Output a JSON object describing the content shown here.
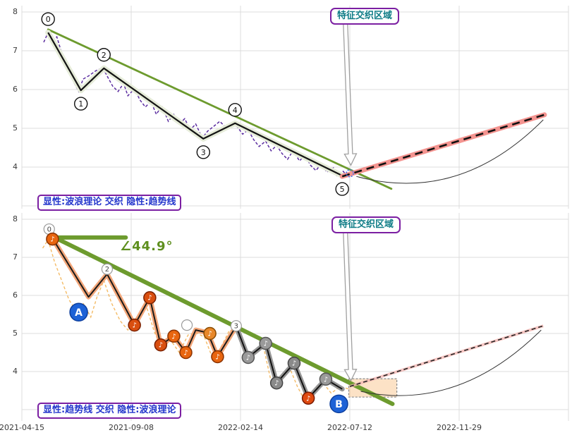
{
  "colors": {
    "background": "#ffffff",
    "grid": "#dcdcdc",
    "tick_text": "#3a3a3a",
    "trend_green": "#6d9b2e",
    "wave_black": "#141414",
    "wave_halo": "#e6ecd9",
    "price_purple": "#5b2da0",
    "price_orange": "#f0a433",
    "forecast_pink": "#f49490",
    "forecast_dash": "#111111",
    "orange_wave_halo": "#f2a172",
    "gray_wave_halo": "#909090",
    "badge_blue": "#1e62d6",
    "zone_border": "#7b1fa2",
    "zone_text": "#0e7c86",
    "caption_text": "#2235cc",
    "caption_border": "#7b1fa2",
    "angle_green": "#5e8f1e",
    "arrow_stroke": "#999999",
    "arc_stroke": "#333333",
    "convergence_blue": "#3b6bf5"
  },
  "x_axis": {
    "ticks": [
      "2021-04-15",
      "2021-09-08",
      "2022-02-14",
      "2022-07-12",
      "2022-11-29"
    ],
    "unit_note": "x values below are in tick-index units: 0=2021-04-15, 1=2021-09-08, 2=2022-02-14, 3=2022-07-12, 4=2022-11-29"
  },
  "chart_data": [
    {
      "type": "line",
      "panel": "top",
      "zone_label": "特征交织区域",
      "caption": "显性:波浪理论 交织 隐性:趋势线",
      "y_ticks": [
        8,
        7,
        6,
        5,
        4
      ],
      "ylim": [
        2.93,
        8.16
      ],
      "xlim_t": [
        0,
        5
      ],
      "grid": true,
      "series": [
        {
          "name": "price",
          "style": "dashed",
          "color_key": "price_purple",
          "points": [
            [
              0.2,
              7.22
            ],
            [
              0.24,
              7.47
            ],
            [
              0.28,
              7.29
            ],
            [
              0.32,
              7.36
            ],
            [
              0.37,
              6.89
            ],
            [
              0.42,
              6.53
            ],
            [
              0.48,
              6.16
            ],
            [
              0.52,
              5.95
            ],
            [
              0.56,
              6.27
            ],
            [
              0.61,
              6.35
            ],
            [
              0.68,
              6.49
            ],
            [
              0.74,
              6.56
            ],
            [
              0.78,
              6.35
            ],
            [
              0.83,
              6.09
            ],
            [
              0.88,
              5.95
            ],
            [
              0.93,
              6.16
            ],
            [
              0.97,
              5.84
            ],
            [
              1.03,
              6.02
            ],
            [
              1.08,
              5.73
            ],
            [
              1.13,
              5.55
            ],
            [
              1.18,
              5.69
            ],
            [
              1.23,
              5.36
            ],
            [
              1.28,
              5.58
            ],
            [
              1.34,
              5.18
            ],
            [
              1.39,
              5.36
            ],
            [
              1.44,
              5.11
            ],
            [
              1.49,
              5.25
            ],
            [
              1.54,
              4.96
            ],
            [
              1.59,
              5.11
            ],
            [
              1.65,
              4.75
            ],
            [
              1.7,
              4.93
            ],
            [
              1.75,
              5.04
            ],
            [
              1.81,
              5.18
            ],
            [
              1.86,
              5.04
            ],
            [
              1.92,
              5.11
            ],
            [
              1.97,
              5.04
            ],
            [
              2.02,
              4.85
            ],
            [
              2.07,
              4.96
            ],
            [
              2.12,
              4.71
            ],
            [
              2.17,
              4.53
            ],
            [
              2.23,
              4.67
            ],
            [
              2.28,
              4.42
            ],
            [
              2.33,
              4.56
            ],
            [
              2.38,
              4.35
            ],
            [
              2.43,
              4.2
            ],
            [
              2.48,
              4.42
            ],
            [
              2.54,
              4.16
            ],
            [
              2.59,
              4.31
            ],
            [
              2.64,
              4.05
            ],
            [
              2.69,
              3.91
            ],
            [
              2.74,
              4.09
            ],
            [
              2.79,
              3.87
            ],
            [
              2.85,
              3.98
            ],
            [
              2.88,
              3.78
            ],
            [
              2.94,
              3.89
            ],
            [
              2.97,
              3.78
            ],
            [
              3.03,
              3.85
            ]
          ]
        },
        {
          "name": "elliott_wave",
          "style": "zigzag",
          "color_key": "wave_black",
          "points": [
            [
              0.24,
              7.47
            ],
            [
              0.54,
              5.98
            ],
            [
              0.75,
              6.55
            ],
            [
              1.66,
              4.73
            ],
            [
              1.95,
              5.13
            ],
            [
              2.93,
              3.78
            ]
          ],
          "labels": [
            "0",
            "1",
            "2",
            "3",
            "4",
            "5"
          ],
          "label_side": [
            "above",
            "below",
            "above",
            "below",
            "above",
            "below"
          ],
          "dates_est": [
            "2021-05-20",
            "2021-07-04",
            "2021-08-05",
            "2021-12-24",
            "2022-02-06",
            "2022-07-01"
          ]
        },
        {
          "name": "trend_line",
          "style": "solid",
          "color_key": "trend_green",
          "points": [
            [
              0.24,
              7.55
            ],
            [
              3.38,
              3.44
            ]
          ]
        },
        {
          "name": "forecast",
          "style": "pink-halo-black-dashed",
          "points": [
            [
              2.93,
              3.76
            ],
            [
              4.78,
              5.35
            ]
          ]
        }
      ],
      "arrow": {
        "tail": [
          2.96,
          7.69
        ],
        "tip": [
          3.01,
          4.05
        ]
      },
      "arc": {
        "from": [
          4.77,
          5.22
        ],
        "ctrl": [
          4.0,
          3.04
        ],
        "to": [
          3.06,
          3.76
        ]
      },
      "convergence_marker": [
        3.0,
        3.84
      ]
    },
    {
      "type": "line",
      "panel": "bottom",
      "zone_label": "特征交织区域",
      "caption": "显性:趋势线 交织 隐性:波浪理论",
      "angle_label": "∠44.9°",
      "y_ticks": [
        8,
        7,
        6,
        5,
        4
      ],
      "ylim": [
        2.7,
        8.17
      ],
      "xlim_t": [
        0,
        5
      ],
      "grid": true,
      "series": [
        {
          "name": "price",
          "style": "dashed",
          "color_key": "price_orange",
          "points": [
            [
              0.19,
              7.24
            ],
            [
              0.24,
              7.46
            ],
            [
              0.3,
              6.87
            ],
            [
              0.37,
              6.35
            ],
            [
              0.43,
              5.89
            ],
            [
              0.5,
              5.57
            ],
            [
              0.56,
              5.8
            ],
            [
              0.63,
              5.43
            ],
            [
              0.69,
              5.98
            ],
            [
              0.75,
              6.39
            ],
            [
              0.82,
              5.8
            ],
            [
              0.9,
              5.33
            ],
            [
              0.97,
              5.09
            ],
            [
              1.05,
              5.43
            ],
            [
              1.13,
              5.8
            ],
            [
              1.21,
              5.06
            ],
            [
              1.28,
              4.59
            ],
            [
              1.36,
              4.83
            ],
            [
              1.44,
              4.5
            ],
            [
              1.52,
              4.96
            ],
            [
              1.59,
              5.02
            ],
            [
              1.67,
              4.91
            ],
            [
              1.75,
              4.31
            ],
            [
              1.83,
              4.69
            ],
            [
              1.9,
              5.09
            ],
            [
              1.98,
              5.02
            ],
            [
              2.06,
              4.28
            ],
            [
              2.14,
              4.5
            ],
            [
              2.21,
              4.65
            ],
            [
              2.29,
              3.61
            ],
            [
              2.37,
              3.85
            ],
            [
              2.45,
              4.09
            ],
            [
              2.52,
              3.61
            ],
            [
              2.6,
              3.17
            ],
            [
              2.68,
              3.54
            ],
            [
              2.75,
              3.72
            ],
            [
              2.83,
              3.43
            ],
            [
              2.91,
              3.61
            ],
            [
              2.99,
              3.54
            ]
          ]
        },
        {
          "name": "trend_line",
          "style": "thick",
          "color_key": "trend_green",
          "points": [
            [
              0.3,
              7.52
            ],
            [
              3.39,
              3.15
            ]
          ]
        },
        {
          "name": "angle_base_line",
          "style": "thick",
          "color_key": "trend_green",
          "points": [
            [
              0.3,
              7.52
            ],
            [
              0.95,
              7.52
            ]
          ]
        },
        {
          "name": "wave_orange",
          "style": "zigzag-orange-halo",
          "points": [
            [
              0.28,
              7.5
            ],
            [
              0.61,
              5.96
            ],
            [
              0.78,
              6.56
            ],
            [
              1.03,
              5.22
            ],
            [
              1.17,
              5.94
            ],
            [
              1.27,
              4.7
            ],
            [
              1.39,
              4.93
            ],
            [
              1.5,
              4.5
            ],
            [
              1.59,
              5.09
            ],
            [
              1.7,
              5.02
            ],
            [
              1.79,
              4.39
            ],
            [
              1.96,
              5.19
            ]
          ]
        },
        {
          "name": "wave_gray",
          "style": "zigzag-gray-halo",
          "points": [
            [
              1.96,
              5.19
            ],
            [
              2.07,
              4.37
            ],
            [
              2.23,
              4.74
            ],
            [
              2.33,
              3.7
            ],
            [
              2.49,
              4.22
            ],
            [
              2.62,
              3.3
            ],
            [
              2.78,
              3.8
            ],
            [
              2.93,
              3.54
            ]
          ]
        },
        {
          "name": "forecast",
          "style": "dashed",
          "points": [
            [
              3.0,
              3.61
            ],
            [
              4.77,
              5.2
            ]
          ]
        }
      ],
      "markers": {
        "white_circles": [
          {
            "t": 0.25,
            "v": 7.74,
            "label": "0"
          },
          {
            "t": 0.78,
            "v": 6.69,
            "label": "2"
          },
          {
            "t": 1.51,
            "v": 5.22,
            "label": ""
          },
          {
            "t": 1.96,
            "v": 5.2,
            "label": "3"
          }
        ],
        "note_badges": [
          {
            "t": 0.28,
            "v": 7.48,
            "glyph": "♪",
            "fill": "#e8650f",
            "stroke": "#8a3200"
          },
          {
            "t": 1.03,
            "v": 5.22,
            "glyph": "♪",
            "fill": "#d94f10",
            "stroke": "#7a2000"
          },
          {
            "t": 1.17,
            "v": 5.94,
            "glyph": "♪",
            "fill": "#d94f10",
            "stroke": "#7a2000"
          },
          {
            "t": 1.27,
            "v": 4.7,
            "glyph": "♪",
            "fill": "#d94f10",
            "stroke": "#7a2000"
          },
          {
            "t": 1.39,
            "v": 4.93,
            "glyph": "♪",
            "fill": "#e8650f",
            "stroke": "#8a3200"
          },
          {
            "t": 1.5,
            "v": 4.5,
            "glyph": "♪",
            "fill": "#e8650f",
            "stroke": "#8a3200"
          },
          {
            "t": 1.72,
            "v": 5.0,
            "glyph": "♪",
            "fill": "#e8882a",
            "stroke": "#8a4a00"
          },
          {
            "t": 1.79,
            "v": 4.39,
            "glyph": "♪",
            "fill": "#e8650f",
            "stroke": "#8a3200"
          },
          {
            "t": 2.07,
            "v": 4.37,
            "glyph": "♪",
            "fill": "#9a9a9a",
            "stroke": "#555555"
          },
          {
            "t": 2.23,
            "v": 4.74,
            "glyph": "♪",
            "fill": "#9a9a9a",
            "stroke": "#555555"
          },
          {
            "t": 2.33,
            "v": 3.7,
            "glyph": "♪",
            "fill": "#8a8a8a",
            "stroke": "#444444"
          },
          {
            "t": 2.49,
            "v": 4.22,
            "glyph": "♪",
            "fill": "#8a8a8a",
            "stroke": "#444444"
          },
          {
            "t": 2.62,
            "v": 3.3,
            "glyph": "♪",
            "fill": "#e04a10",
            "stroke": "#7a1a00"
          },
          {
            "t": 2.78,
            "v": 3.8,
            "glyph": "♪",
            "fill": "#9a9a9a",
            "stroke": "#555555"
          }
        ],
        "ab_badges": [
          {
            "t": 0.52,
            "v": 5.56,
            "label": "A",
            "date_est": "2021-07-01"
          },
          {
            "t": 2.9,
            "v": 3.15,
            "label": "B",
            "date_est": "2022-07-08"
          }
        ]
      },
      "zone_rect": {
        "t1": 2.99,
        "v1": 3.81,
        "t2": 3.43,
        "v2": 3.33
      },
      "arrow": {
        "tail": [
          2.96,
          7.65
        ],
        "tip": [
          3.01,
          3.76
        ]
      },
      "arc": {
        "from": [
          4.75,
          5.09
        ],
        "ctrl": [
          3.99,
          2.93
        ],
        "to": [
          3.1,
          3.48
        ]
      }
    }
  ]
}
